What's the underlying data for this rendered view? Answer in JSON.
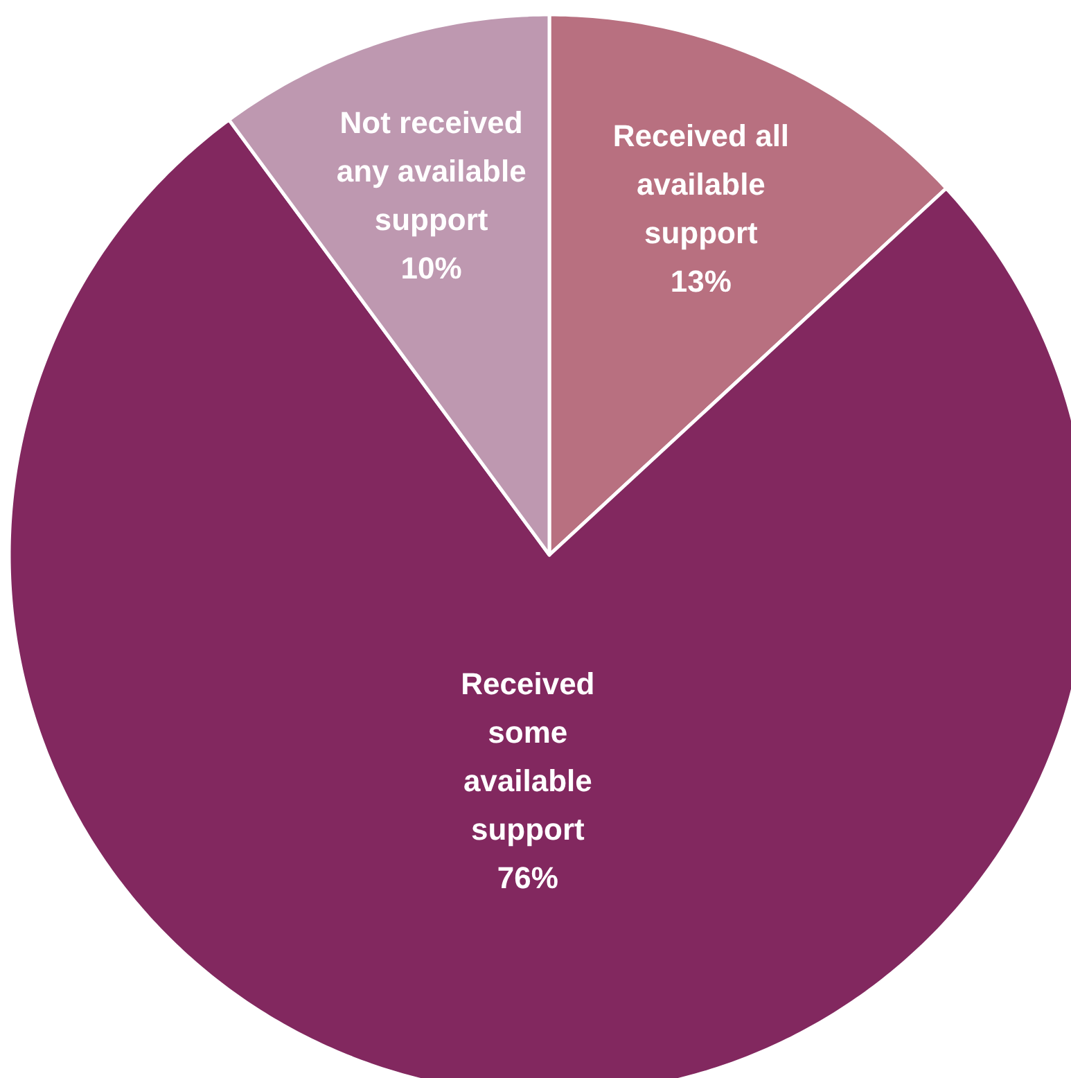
{
  "chart_data": {
    "type": "pie",
    "categories": [
      "Received all\navailable\nsupport",
      "Received\nsome\navailable\nsupport",
      "Not received\nany available\nsupport"
    ],
    "values": [
      13,
      76,
      10
    ],
    "colors": [
      "#b87080",
      "#82285f",
      "#be98b0"
    ],
    "value_labels": [
      "13%",
      "76%",
      "10%"
    ]
  }
}
